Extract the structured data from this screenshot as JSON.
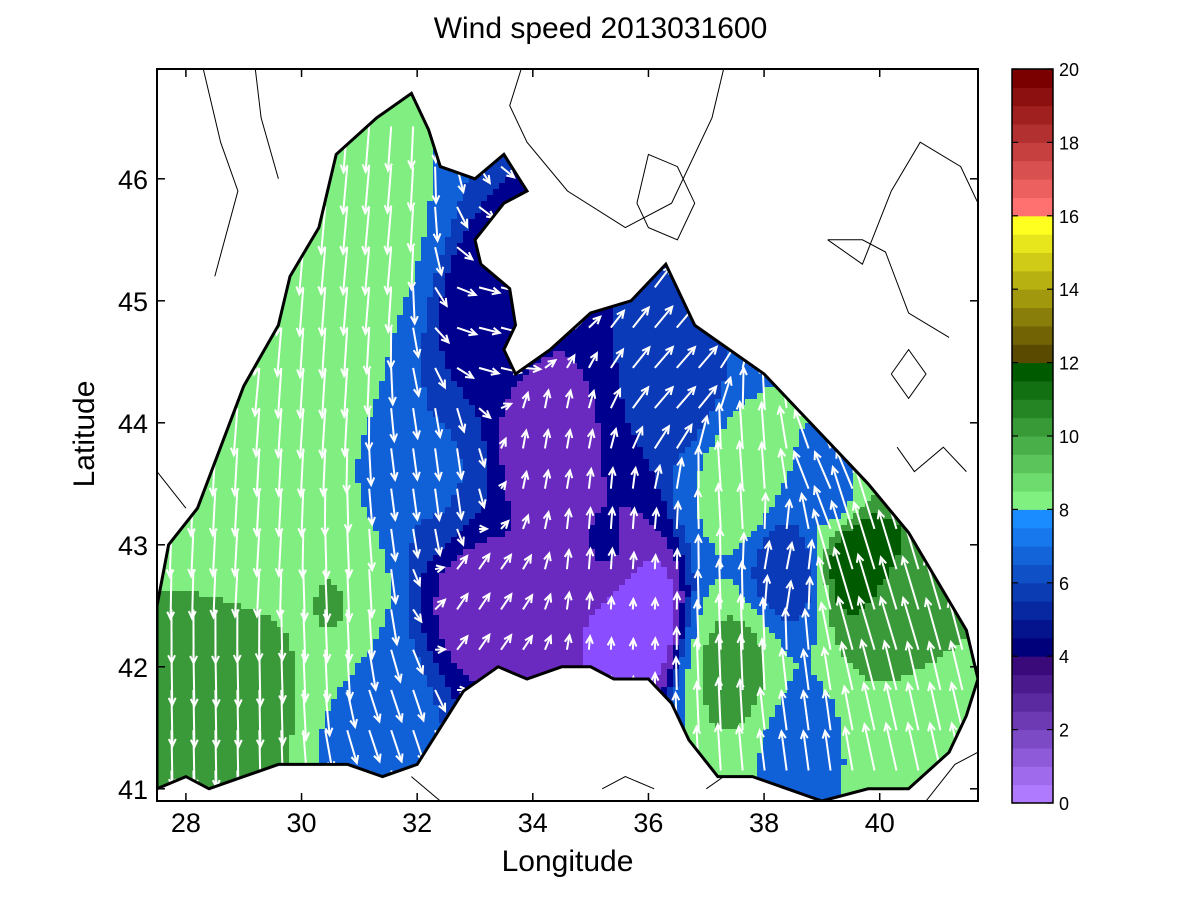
{
  "title": "Wind speed 2013031600",
  "xlabel": "Longitude",
  "ylabel": "Latitude",
  "chart_data": {
    "type": "heatmap",
    "title": "Wind speed 2013031600",
    "xlabel": "Longitude",
    "ylabel": "Latitude",
    "xlim": [
      27.5,
      41.7
    ],
    "ylim": [
      40.9,
      46.9
    ],
    "xticks": [
      "28",
      "30",
      "32",
      "34",
      "36",
      "38",
      "40"
    ],
    "yticks": [
      "41",
      "42",
      "43",
      "44",
      "45",
      "46"
    ],
    "colorbar": {
      "range": [
        0,
        20
      ],
      "ticks": [
        "0",
        "2",
        "4",
        "6",
        "8",
        "10",
        "12",
        "14",
        "16",
        "18",
        "20"
      ],
      "bands": [
        {
          "from": 0,
          "to": 4,
          "color_low": "#b07aff",
          "color_high": "#3a0a7a"
        },
        {
          "from": 4,
          "to": 8,
          "color_low": "#00007a",
          "color_high": "#1a8cff"
        },
        {
          "from": 8,
          "to": 12,
          "color_low": "#80f080",
          "color_high": "#005a00"
        },
        {
          "from": 12,
          "to": 16,
          "color_low": "#5a4a00",
          "color_high": "#ffff20"
        },
        {
          "from": 16,
          "to": 20,
          "color_low": "#ff7070",
          "color_high": "#7a0000"
        }
      ]
    },
    "levels": [
      {
        "value": 3,
        "color": "#6a2abf"
      },
      {
        "value": 4,
        "color": "#00008e"
      },
      {
        "value": 5,
        "color": "#0a3ab8"
      },
      {
        "value": 6,
        "color": "#1060d8"
      },
      {
        "value": 8,
        "color": "#80ee80"
      },
      {
        "value": 10,
        "color": "#3a9a3a"
      },
      {
        "value": 12,
        "color": "#005a00"
      },
      {
        "value": 14,
        "color": "#b4ac00"
      }
    ],
    "outline": [
      [
        27.5,
        42.5
      ],
      [
        27.7,
        43.0
      ],
      [
        28.2,
        43.3
      ],
      [
        28.6,
        43.8
      ],
      [
        29.0,
        44.3
      ],
      [
        29.6,
        44.8
      ],
      [
        29.8,
        45.2
      ],
      [
        30.3,
        45.6
      ],
      [
        30.6,
        46.2
      ],
      [
        31.3,
        46.5
      ],
      [
        31.9,
        46.7
      ],
      [
        32.2,
        46.4
      ],
      [
        32.4,
        46.1
      ],
      [
        33.0,
        46.0
      ],
      [
        33.5,
        46.2
      ],
      [
        33.9,
        45.9
      ],
      [
        33.5,
        45.8
      ],
      [
        33.0,
        45.5
      ],
      [
        33.1,
        45.3
      ],
      [
        33.6,
        45.1
      ],
      [
        33.7,
        44.8
      ],
      [
        33.5,
        44.6
      ],
      [
        33.7,
        44.4
      ],
      [
        34.3,
        44.6
      ],
      [
        35.0,
        44.9
      ],
      [
        35.7,
        45.0
      ],
      [
        36.3,
        45.3
      ],
      [
        36.6,
        45.0
      ],
      [
        36.8,
        44.8
      ],
      [
        37.4,
        44.6
      ],
      [
        38.0,
        44.4
      ],
      [
        38.6,
        44.1
      ],
      [
        39.2,
        43.8
      ],
      [
        39.8,
        43.5
      ],
      [
        40.5,
        43.1
      ],
      [
        41.0,
        42.7
      ],
      [
        41.5,
        42.3
      ],
      [
        41.7,
        41.9
      ],
      [
        41.5,
        41.6
      ],
      [
        41.2,
        41.3
      ],
      [
        40.5,
        41.0
      ],
      [
        39.8,
        41.0
      ],
      [
        39.0,
        40.9
      ],
      [
        38.4,
        41.0
      ],
      [
        37.8,
        41.1
      ],
      [
        37.2,
        41.1
      ],
      [
        36.7,
        41.4
      ],
      [
        36.4,
        41.7
      ],
      [
        36.0,
        41.9
      ],
      [
        35.4,
        41.9
      ],
      [
        35.0,
        42.0
      ],
      [
        34.5,
        42.0
      ],
      [
        33.9,
        41.9
      ],
      [
        33.4,
        42.0
      ],
      [
        32.8,
        41.8
      ],
      [
        32.4,
        41.5
      ],
      [
        32.0,
        41.2
      ],
      [
        31.4,
        41.1
      ],
      [
        30.8,
        41.2
      ],
      [
        30.2,
        41.2
      ],
      [
        29.6,
        41.2
      ],
      [
        29.0,
        41.1
      ],
      [
        28.4,
        41.0
      ],
      [
        28.0,
        41.1
      ],
      [
        27.5,
        41.0
      ]
    ],
    "wind_field": [
      {
        "lon": 29.0,
        "lat": 45.0,
        "u": -1.0,
        "v": -9.0
      },
      {
        "lon": 30.2,
        "lat": 44.5,
        "u": -0.6,
        "v": -9.5
      },
      {
        "lon": 31.0,
        "lat": 45.6,
        "u": -0.8,
        "v": -9.0
      },
      {
        "lon": 29.2,
        "lat": 43.2,
        "u": -0.5,
        "v": -9.0
      },
      {
        "lon": 30.5,
        "lat": 42.5,
        "u": 0.4,
        "v": -10.0
      },
      {
        "lon": 28.8,
        "lat": 41.8,
        "u": 0.2,
        "v": -11.0
      },
      {
        "lon": 32.3,
        "lat": 43.6,
        "u": 0.8,
        "v": -6.0
      },
      {
        "lon": 33.0,
        "lat": 42.5,
        "u": 2.0,
        "v": 3.0
      },
      {
        "lon": 33.4,
        "lat": 44.8,
        "u": 4.0,
        "v": -1.0
      },
      {
        "lon": 34.2,
        "lat": 43.8,
        "u": 0.6,
        "v": 3.5
      },
      {
        "lon": 35.3,
        "lat": 43.0,
        "u": 0.3,
        "v": 4.0
      },
      {
        "lon": 35.8,
        "lat": 42.4,
        "u": 0.1,
        "v": 2.0
      },
      {
        "lon": 36.5,
        "lat": 44.3,
        "u": 3.5,
        "v": 4.0
      },
      {
        "lon": 37.6,
        "lat": 43.5,
        "u": -0.6,
        "v": 9.0
      },
      {
        "lon": 37.5,
        "lat": 42.0,
        "u": -0.4,
        "v": 10.5
      },
      {
        "lon": 38.4,
        "lat": 42.8,
        "u": 1.0,
        "v": 5.0
      },
      {
        "lon": 39.6,
        "lat": 42.9,
        "u": -4.0,
        "v": 13.0
      },
      {
        "lon": 40.3,
        "lat": 42.3,
        "u": -3.0,
        "v": 10.0
      },
      {
        "lon": 40.6,
        "lat": 41.5,
        "u": -2.0,
        "v": 9.0
      },
      {
        "lon": 39.2,
        "lat": 43.4,
        "u": -3.0,
        "v": 7.0
      },
      {
        "lon": 38.6,
        "lat": 41.4,
        "u": -1.0,
        "v": 7.5
      },
      {
        "lon": 31.5,
        "lat": 41.6,
        "u": 2.0,
        "v": -6.0
      }
    ]
  }
}
